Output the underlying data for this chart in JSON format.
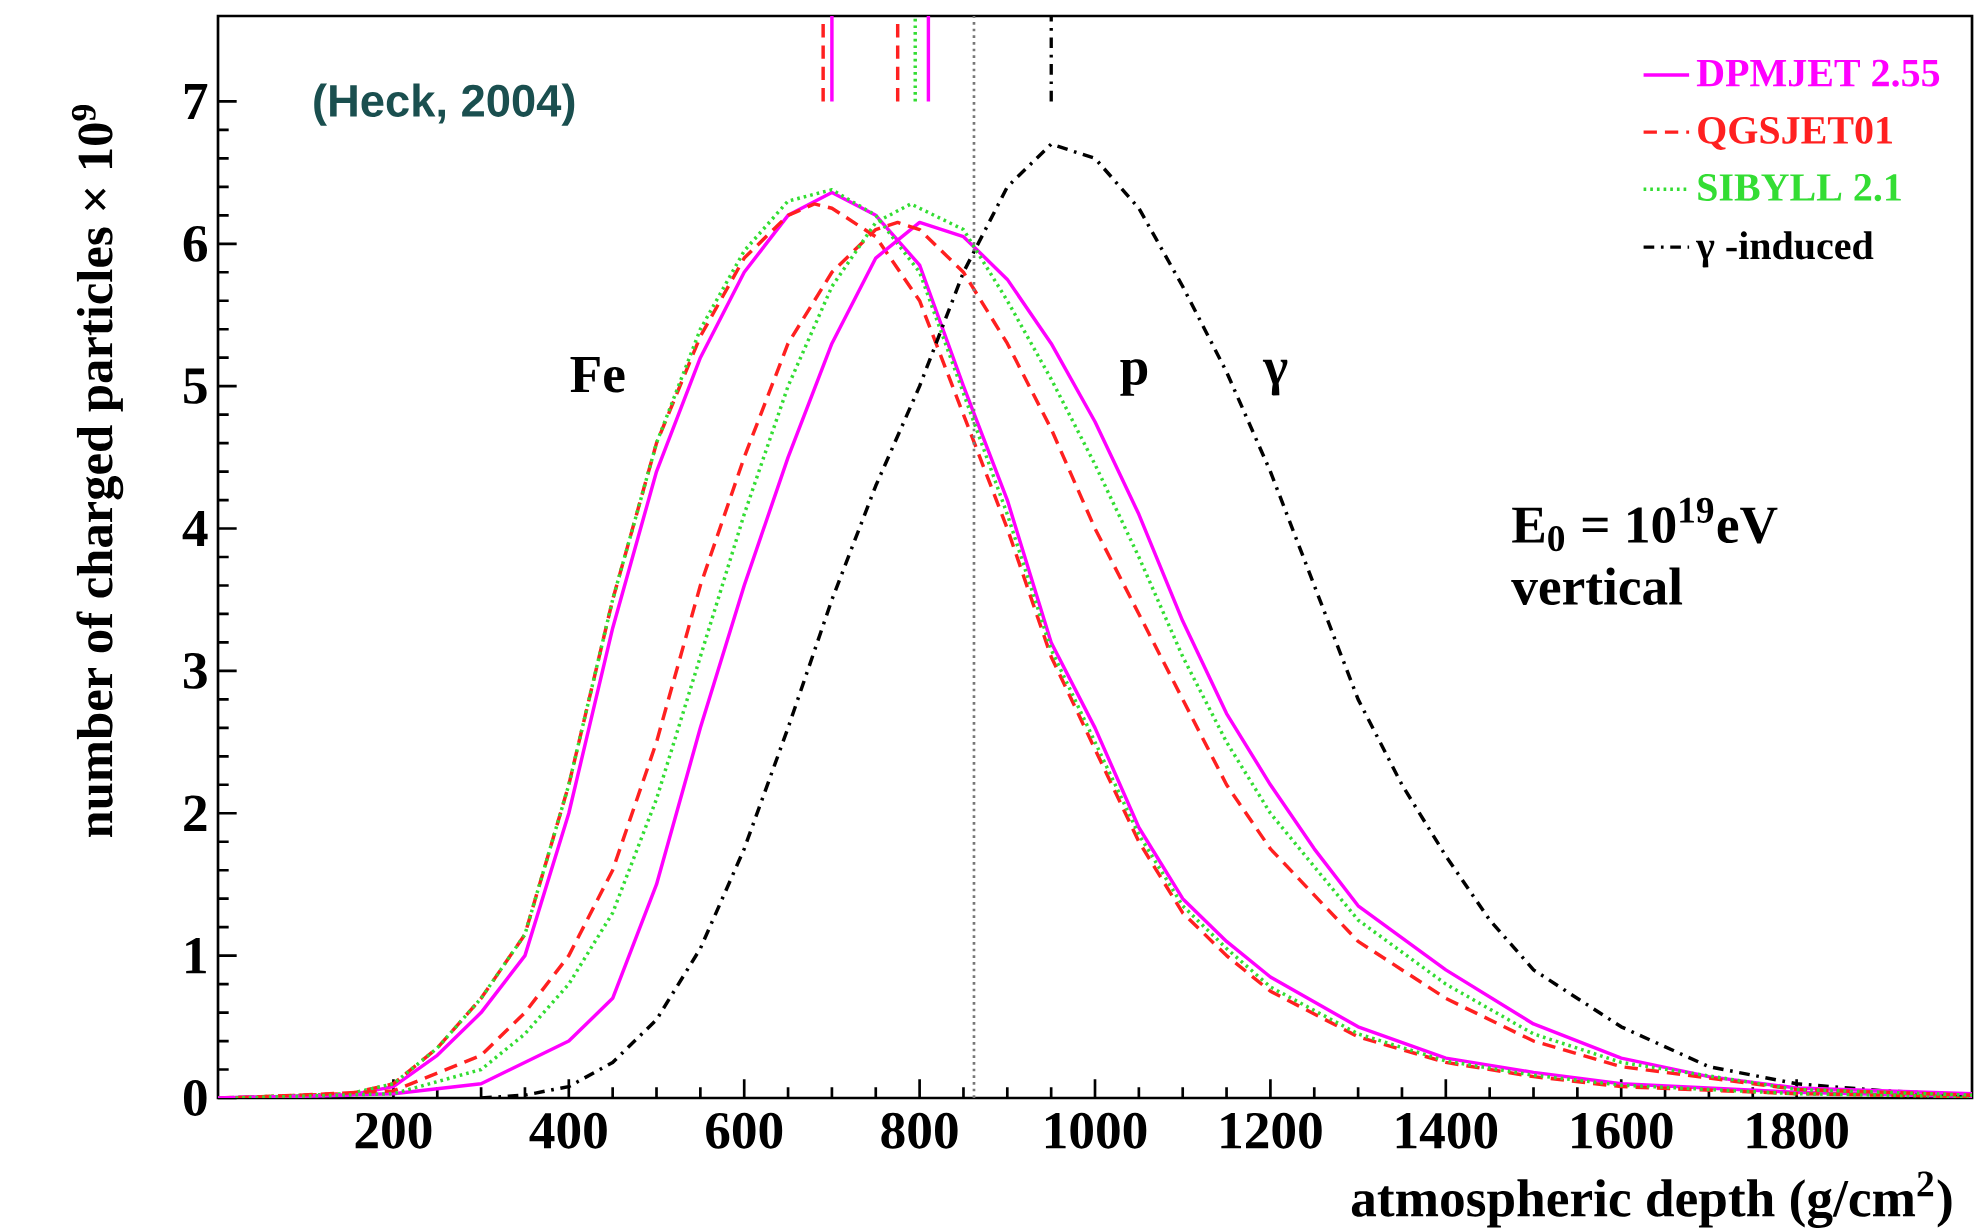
{
  "chart_data": {
    "type": "line",
    "xlabel": "atmospheric depth (g/cm$^{2}$)",
    "ylabel": "number of charged particles × 10$^{9}$",
    "xlim": [
      0,
      2000
    ],
    "ylim": [
      0,
      7.6
    ],
    "xticks": [
      200,
      400,
      600,
      800,
      1000,
      1200,
      1400,
      1600,
      1800
    ],
    "yticks": [
      0,
      1,
      2,
      3,
      4,
      5,
      6,
      7
    ],
    "grid": false,
    "legend": "top right",
    "series": [
      {
        "name": "DPMJET 2.55",
        "color": "#ff00ff",
        "line_style": "solid",
        "x": [
          0,
          150,
          200,
          250,
          300,
          350,
          400,
          450,
          500,
          550,
          600,
          650,
          700,
          750,
          800,
          850,
          900,
          950,
          1000,
          1050,
          1100,
          1150,
          1200,
          1300,
          1400,
          1500,
          1600,
          1800,
          2000
        ],
        "values": [
          0,
          0.02,
          0.08,
          0.3,
          0.6,
          1.0,
          2.0,
          3.3,
          4.4,
          5.2,
          5.8,
          6.2,
          6.36,
          6.2,
          5.85,
          5.0,
          4.2,
          3.2,
          2.6,
          1.9,
          1.4,
          1.1,
          0.85,
          0.5,
          0.28,
          0.18,
          0.1,
          0.04,
          0.01
        ]
      },
      {
        "name": "QGSJET01",
        "color": "#ff2020",
        "line_style": "dashed",
        "x": [
          0,
          150,
          200,
          250,
          300,
          350,
          400,
          450,
          500,
          550,
          600,
          650,
          680,
          700,
          750,
          800,
          850,
          900,
          950,
          1000,
          1050,
          1100,
          1150,
          1200,
          1300,
          1400,
          1500,
          1600,
          1800,
          2000
        ],
        "values": [
          0,
          0.03,
          0.1,
          0.35,
          0.7,
          1.15,
          2.2,
          3.5,
          4.6,
          5.35,
          5.9,
          6.2,
          6.28,
          6.25,
          6.05,
          5.6,
          4.8,
          4.0,
          3.1,
          2.45,
          1.8,
          1.3,
          1.0,
          0.75,
          0.43,
          0.25,
          0.15,
          0.08,
          0.03,
          0.01
        ]
      },
      {
        "name": "SIBYLL 2.1",
        "color": "#33dd33",
        "line_style": "dotted",
        "x": [
          0,
          150,
          200,
          250,
          300,
          350,
          400,
          450,
          500,
          550,
          600,
          650,
          700,
          750,
          800,
          850,
          900,
          950,
          1000,
          1050,
          1100,
          1150,
          1200,
          1300,
          1400,
          1500,
          1600,
          1800,
          2000
        ],
        "values": [
          0,
          0.03,
          0.1,
          0.35,
          0.7,
          1.15,
          2.2,
          3.5,
          4.6,
          5.4,
          5.95,
          6.3,
          6.38,
          6.2,
          5.8,
          4.95,
          4.1,
          3.15,
          2.5,
          1.85,
          1.35,
          1.05,
          0.78,
          0.45,
          0.26,
          0.16,
          0.09,
          0.03,
          0.01
        ]
      },
      {
        "name": "γ -induced",
        "color": "#000000",
        "line_style": "dashdot",
        "x": [
          300,
          350,
          400,
          450,
          500,
          550,
          600,
          650,
          700,
          750,
          800,
          850,
          900,
          950,
          1000,
          1050,
          1100,
          1150,
          1200,
          1250,
          1300,
          1350,
          1400,
          1450,
          1500,
          1600,
          1700,
          1800,
          1900,
          2000
        ],
        "values": [
          0,
          0.02,
          0.08,
          0.25,
          0.55,
          1.05,
          1.75,
          2.6,
          3.5,
          4.3,
          5.0,
          5.8,
          6.4,
          6.7,
          6.6,
          6.25,
          5.7,
          5.1,
          4.4,
          3.6,
          2.8,
          2.2,
          1.7,
          1.25,
          0.9,
          0.5,
          0.22,
          0.1,
          0.05,
          0.02
        ]
      },
      {
        "color": "#ff00ff",
        "line_style": "solid",
        "x": [
          0,
          200,
          300,
          400,
          450,
          500,
          550,
          600,
          650,
          700,
          750,
          800,
          850,
          900,
          950,
          1000,
          1050,
          1100,
          1150,
          1200,
          1250,
          1300,
          1400,
          1500,
          1600,
          1700,
          1800,
          2000
        ],
        "values": [
          0,
          0.03,
          0.1,
          0.4,
          0.7,
          1.5,
          2.6,
          3.6,
          4.5,
          5.3,
          5.9,
          6.15,
          6.05,
          5.75,
          5.3,
          4.75,
          4.1,
          3.35,
          2.7,
          2.2,
          1.75,
          1.35,
          0.9,
          0.52,
          0.28,
          0.15,
          0.07,
          0.03
        ]
      },
      {
        "color": "#ff2020",
        "line_style": "dashed",
        "x": [
          20,
          200,
          300,
          350,
          400,
          450,
          500,
          550,
          600,
          650,
          700,
          750,
          775,
          800,
          850,
          900,
          950,
          1000,
          1050,
          1100,
          1150,
          1200,
          1300,
          1400,
          1500,
          1600,
          1800,
          2000
        ],
        "values": [
          0,
          0.05,
          0.3,
          0.6,
          1.0,
          1.6,
          2.5,
          3.6,
          4.5,
          5.3,
          5.8,
          6.1,
          6.15,
          6.1,
          5.8,
          5.3,
          4.7,
          4.0,
          3.4,
          2.8,
          2.2,
          1.75,
          1.1,
          0.7,
          0.4,
          0.22,
          0.06,
          0.02
        ]
      },
      {
        "color": "#33dd33",
        "line_style": "dotted",
        "x": [
          20,
          200,
          300,
          350,
          400,
          450,
          500,
          550,
          600,
          650,
          700,
          750,
          790,
          850,
          900,
          950,
          1000,
          1050,
          1100,
          1150,
          1200,
          1300,
          1400,
          1500,
          1600,
          1800,
          2000
        ],
        "values": [
          0,
          0.03,
          0.2,
          0.45,
          0.8,
          1.3,
          2.1,
          3.1,
          4.1,
          5.0,
          5.7,
          6.15,
          6.28,
          6.1,
          5.6,
          5.05,
          4.45,
          3.8,
          3.1,
          2.5,
          2.0,
          1.25,
          0.8,
          0.45,
          0.25,
          0.06,
          0.02
        ]
      },
      {
        "color": "#ff2020",
        "line_style": "dashed",
        "x": [
          690,
          690
        ],
        "values": [
          7.0,
          7.6
        ]
      },
      {
        "color": "#ff00ff",
        "line_style": "solid",
        "x": [
          700,
          700
        ],
        "values": [
          7.0,
          7.6
        ]
      },
      {
        "color": "#ff2020",
        "line_style": "dashed",
        "x": [
          775,
          775
        ],
        "values": [
          7.0,
          7.6
        ]
      },
      {
        "color": "#33dd33",
        "line_style": "dotted",
        "x": [
          795,
          795
        ],
        "values": [
          7.0,
          7.6
        ]
      },
      {
        "color": "#ff00ff",
        "line_style": "solid",
        "x": [
          810,
          810
        ],
        "values": [
          7.0,
          7.6
        ]
      },
      {
        "color": "#000000",
        "line_style": "dashdot",
        "x": [
          950,
          950
        ],
        "values": [
          7.0,
          7.6
        ]
      }
    ],
    "ref_lines": [
      {
        "axis": "x",
        "value": 862,
        "color": "#777777",
        "line_style": "dotted"
      }
    ],
    "annotations": [
      "(Heck, 2004)",
      "E$_{0}$ = 10$^{19}$eV",
      "vertical",
      "Fe",
      "p",
      "γ"
    ]
  }
}
